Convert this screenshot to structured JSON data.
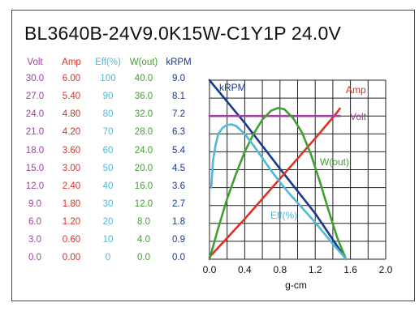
{
  "title": "BL3640B-24V9.0K15W-C1Y1P   24.0V",
  "columns": [
    {
      "header": "Volt",
      "color": "#a040a0",
      "values": [
        "30.0",
        "27.0",
        "24.0",
        "21.0",
        "18.0",
        "15.0",
        "12.0",
        "9.0",
        "6.0",
        "3.0",
        "0.0"
      ]
    },
    {
      "header": "Amp",
      "color": "#e03020",
      "values": [
        "6.00",
        "5.40",
        "4.80",
        "4.20",
        "3.60",
        "3.00",
        "2.40",
        "1.80",
        "1.20",
        "0.60",
        "0.00"
      ]
    },
    {
      "header": "Eff(%)",
      "color": "#50b8d8",
      "values": [
        "100",
        "90",
        "80",
        "70",
        "60",
        "50",
        "40",
        "30",
        "20",
        "10",
        "0"
      ]
    },
    {
      "header": "W(out)",
      "color": "#40a030",
      "values": [
        "40.0",
        "36.0",
        "32.0",
        "28.0",
        "24.0",
        "20.0",
        "16.0",
        "12.0",
        "8.0",
        "4.0",
        "0.0"
      ]
    },
    {
      "header": "kRPM",
      "color": "#1a3a90",
      "values": [
        "9.0",
        "8.1",
        "7.2",
        "6.3",
        "5.4",
        "4.5",
        "3.6",
        "2.7",
        "1.8",
        "0.9",
        "0.0"
      ]
    }
  ],
  "chart_data": {
    "type": "line",
    "xlabel": "g-cm",
    "xlim": [
      0,
      2.0
    ],
    "x_ticks": [
      "0.0",
      "0.4",
      "0.8",
      "1.2",
      "1.6",
      "2.0"
    ],
    "grid": true,
    "series": [
      {
        "name": "kRPM",
        "color": "#1a3a90",
        "scale": "kRPM",
        "points": [
          [
            0,
            9.0
          ],
          [
            0.4,
            6.85
          ],
          [
            0.8,
            4.55
          ],
          [
            1.2,
            2.3
          ],
          [
            1.55,
            0.0
          ]
        ]
      },
      {
        "name": "Amp",
        "color": "#e03020",
        "scale": "Amp",
        "points": [
          [
            0,
            0.07
          ],
          [
            0.4,
            1.35
          ],
          [
            0.8,
            2.7
          ],
          [
            1.2,
            4.05
          ],
          [
            1.44,
            4.89
          ],
          [
            1.48,
            5.05
          ]
        ]
      },
      {
        "name": "Volt",
        "color": "#a040a0",
        "scale": "Volt",
        "points": [
          [
            0,
            24.0
          ],
          [
            1.48,
            24.0
          ]
        ]
      },
      {
        "name": "W(out)",
        "color": "#40a030",
        "scale": "W(out)",
        "points": [
          [
            0,
            0.0
          ],
          [
            0.1,
            7.0
          ],
          [
            0.2,
            13.5
          ],
          [
            0.3,
            19.0
          ],
          [
            0.4,
            24.0
          ],
          [
            0.5,
            28.0
          ],
          [
            0.6,
            31.2
          ],
          [
            0.7,
            33.2
          ],
          [
            0.78,
            33.8
          ],
          [
            0.85,
            33.5
          ],
          [
            0.95,
            31.5
          ],
          [
            1.05,
            28.3
          ],
          [
            1.15,
            23.5
          ],
          [
            1.25,
            17.5
          ],
          [
            1.35,
            11.0
          ],
          [
            1.45,
            4.8
          ],
          [
            1.55,
            0.0
          ]
        ]
      },
      {
        "name": "Eff(%)",
        "color": "#50b8d8",
        "scale": "Eff(%)",
        "points": [
          [
            0.02,
            40
          ],
          [
            0.04,
            55
          ],
          [
            0.07,
            64
          ],
          [
            0.1,
            70
          ],
          [
            0.15,
            73.5
          ],
          [
            0.2,
            75
          ],
          [
            0.25,
            75.3
          ],
          [
            0.3,
            74.5
          ],
          [
            0.4,
            70
          ],
          [
            0.5,
            63.5
          ],
          [
            0.6,
            56.5
          ],
          [
            0.7,
            49.5
          ],
          [
            0.8,
            43
          ],
          [
            0.9,
            37
          ],
          [
            1.0,
            31.5
          ],
          [
            1.1,
            26
          ],
          [
            1.2,
            20.5
          ],
          [
            1.3,
            14.5
          ],
          [
            1.4,
            8.5
          ],
          [
            1.5,
            3
          ],
          [
            1.55,
            0
          ]
        ]
      }
    ],
    "scales": {
      "Volt": [
        0,
        30
      ],
      "Amp": [
        0,
        6
      ],
      "Eff(%)": [
        0,
        100
      ],
      "W(out)": [
        0,
        40
      ],
      "kRPM": [
        0,
        9
      ]
    },
    "annotations": [
      {
        "series": "kRPM",
        "text": "kRPM",
        "color": "#1a3a90"
      },
      {
        "series": "Amp",
        "text": "Amp",
        "color": "#e03020"
      },
      {
        "series": "Volt",
        "text": "Volt",
        "color": "#a040a0"
      },
      {
        "series": "W(out)",
        "text": "W(out)",
        "color": "#40a030"
      },
      {
        "series": "Eff(%)",
        "text": "Eff(%)",
        "color": "#50b8d8"
      }
    ]
  }
}
